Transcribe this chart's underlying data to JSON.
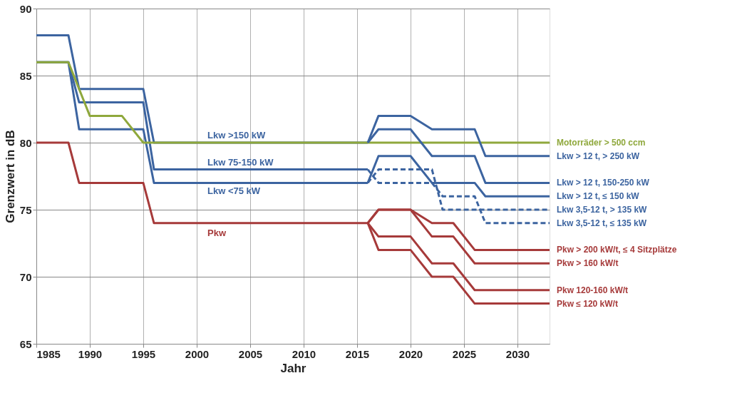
{
  "chart_data": {
    "type": "line",
    "xlabel": "Jahr",
    "ylabel": "Grenzwert in dB",
    "xlim": [
      1985,
      2033
    ],
    "xticks": [
      1985,
      1990,
      1995,
      2000,
      2005,
      2010,
      2015,
      2020,
      2025,
      2030
    ],
    "ylim": [
      65,
      90
    ],
    "yticks": [
      65,
      70,
      75,
      80,
      85,
      90
    ],
    "grid": true,
    "legend": false,
    "marker": "none",
    "series": [
      {
        "name": "Lkw >150 kW",
        "color": "#3c64a0",
        "x": [
          1985,
          1988,
          1989,
          1995,
          1996,
          2016
        ],
        "values": [
          88,
          88,
          84,
          84,
          80,
          80
        ]
      },
      {
        "name": "Lkw 75-150 kW",
        "color": "#3c64a0",
        "x": [
          1985,
          1988,
          1989,
          1995,
          1996,
          2016
        ],
        "values": [
          86,
          86,
          83,
          83,
          78,
          78
        ]
      },
      {
        "name": "Lkw <75 kW",
        "color": "#3c64a0",
        "x": [
          1985,
          1988,
          1989,
          1995,
          1996,
          2016
        ],
        "values": [
          86,
          86,
          81,
          81,
          77,
          77
        ]
      },
      {
        "name": "Pkw",
        "color": "#a63a3a",
        "x": [
          1985,
          1988,
          1989,
          1995,
          1996,
          2016
        ],
        "values": [
          80,
          80,
          77,
          77,
          74,
          74
        ]
      },
      {
        "name": "Motorräder > 500 ccm",
        "color": "#8fa83c",
        "x": [
          1985,
          1988,
          1990,
          1993,
          1995,
          2033
        ],
        "values": [
          86,
          86,
          82,
          82,
          80,
          80
        ]
      },
      {
        "name": "Lkw > 12 t, > 250 kW",
        "color": "#3c64a0",
        "x": [
          2016,
          2017,
          2020,
          2022,
          2026,
          2027,
          2033
        ],
        "values": [
          80,
          82,
          82,
          81,
          81,
          79,
          79
        ]
      },
      {
        "name": "Lkw > 12 t, 150-250 kW",
        "color": "#3c64a0",
        "x": [
          2016,
          2017,
          2020,
          2022,
          2026,
          2027,
          2033
        ],
        "values": [
          80,
          81,
          81,
          79,
          79,
          77,
          77
        ]
      },
      {
        "name": "Lkw > 12 t, ≤ 150 kW",
        "color": "#3c64a0",
        "x": [
          2016,
          2017,
          2020,
          2022,
          2026,
          2027,
          2033
        ],
        "values": [
          77,
          79,
          79,
          77,
          77,
          76,
          76
        ]
      },
      {
        "name": "Lkw 3,5-12 t, > 135 kW",
        "color": "#3c64a0",
        "line_style": "dashed",
        "x": [
          2016,
          2017,
          2022,
          2023,
          2033
        ],
        "values": [
          77,
          78,
          78,
          75,
          75
        ]
      },
      {
        "name": "Lkw 3,5-12 t, ≤ 135 kW",
        "color": "#3c64a0",
        "line_style": "dashed",
        "x": [
          2016,
          2017,
          2022,
          2023,
          2026,
          2027,
          2033
        ],
        "values": [
          78,
          77,
          77,
          76,
          76,
          74,
          74
        ]
      },
      {
        "name": "Pkw > 200 kW/t, ≤ 4 Sitzplätze",
        "color": "#a63a3a",
        "x": [
          2016,
          2017,
          2020,
          2022,
          2024,
          2026,
          2033
        ],
        "values": [
          74,
          75,
          75,
          74,
          74,
          72,
          72
        ]
      },
      {
        "name": "Pkw > 160 kW/t",
        "color": "#a63a3a",
        "x": [
          2016,
          2017,
          2020,
          2022,
          2024,
          2026,
          2033
        ],
        "values": [
          74,
          75,
          75,
          73,
          73,
          71,
          71
        ]
      },
      {
        "name": "Pkw 120-160 kW/t",
        "color": "#a63a3a",
        "x": [
          2016,
          2017,
          2020,
          2022,
          2024,
          2026,
          2033
        ],
        "values": [
          74,
          73,
          73,
          71,
          71,
          69,
          69
        ]
      },
      {
        "name": "Pkw ≤ 120 kW/t",
        "color": "#a63a3a",
        "x": [
          2016,
          2017,
          2020,
          2022,
          2024,
          2026,
          2033
        ],
        "values": [
          74,
          72,
          72,
          70,
          70,
          68,
          68
        ]
      }
    ]
  }
}
